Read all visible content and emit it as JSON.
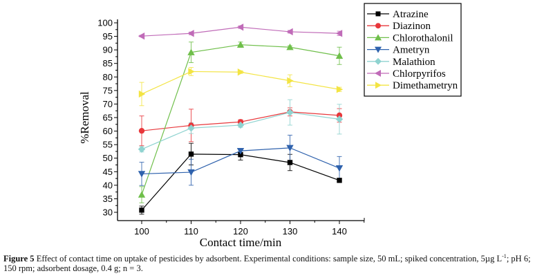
{
  "chart_data": {
    "type": "line",
    "title": "",
    "xlabel": "Contact time/min",
    "ylabel": "%Removal",
    "x": [
      100,
      110,
      120,
      130,
      140
    ],
    "xlim": [
      95,
      145
    ],
    "ylim": [
      28,
      100
    ],
    "xticks": [
      100,
      110,
      120,
      130,
      140
    ],
    "yticks": [
      30,
      35,
      40,
      45,
      50,
      55,
      60,
      65,
      70,
      75,
      80,
      85,
      90,
      95,
      100
    ],
    "grid": false,
    "legend_position": "top-right",
    "series": [
      {
        "name": "Atrazine",
        "color": "#000000",
        "marker": "square",
        "values": [
          30.8,
          51.5,
          51.3,
          48.4,
          41.8
        ],
        "errors": [
          1.5,
          4.0,
          2.0,
          3.0,
          0.8
        ]
      },
      {
        "name": "Diazinon",
        "color": "#e8373b",
        "marker": "circle",
        "values": [
          60.1,
          62.1,
          63.4,
          67.1,
          65.8
        ],
        "errors": [
          5.5,
          6.0,
          0.8,
          1.5,
          2.5
        ]
      },
      {
        "name": "Chlorothalonil",
        "color": "#6fbf4a",
        "marker": "triangle-up",
        "values": [
          36.5,
          89.1,
          91.9,
          91.0,
          87.8
        ],
        "errors": [
          3.0,
          3.8,
          1.0,
          0.5,
          3.2
        ]
      },
      {
        "name": "Ametryn",
        "color": "#2f62ad",
        "marker": "triangle-down",
        "values": [
          44.2,
          44.8,
          52.7,
          53.8,
          46.3
        ],
        "errors": [
          4.3,
          4.8,
          0.8,
          4.7,
          4.3
        ]
      },
      {
        "name": "Malathion",
        "color": "#8fd3d0",
        "marker": "diamond",
        "values": [
          53.3,
          61.1,
          62.2,
          66.9,
          64.4
        ],
        "errors": [
          1.0,
          2.0,
          0.8,
          4.7,
          5.5
        ]
      },
      {
        "name": "Chlorpyrifos",
        "color": "#c06bb8",
        "marker": "triangle-left",
        "values": [
          95.1,
          96.1,
          98.4,
          96.7,
          96.1
        ],
        "errors": [
          0.3,
          0.5,
          0.5,
          0.5,
          0.8
        ]
      },
      {
        "name": "Dimethametryn",
        "color": "#f3e443",
        "marker": "triangle-right",
        "values": [
          73.7,
          82.0,
          81.8,
          78.6,
          75.4
        ],
        "errors": [
          4.3,
          1.5,
          0.5,
          2.2,
          0.8
        ]
      }
    ]
  },
  "caption": {
    "label": "Figure 5",
    "text": " Effect of contact time on uptake of pesticides by adsorbent. Experimental conditions: sample size, 50  mL; spiked concentration, 5µg L",
    "sup": "-1",
    "text_after": "; pH 6; 150 rpm; adsorbent dosage, 0.4 g; n = 3."
  }
}
